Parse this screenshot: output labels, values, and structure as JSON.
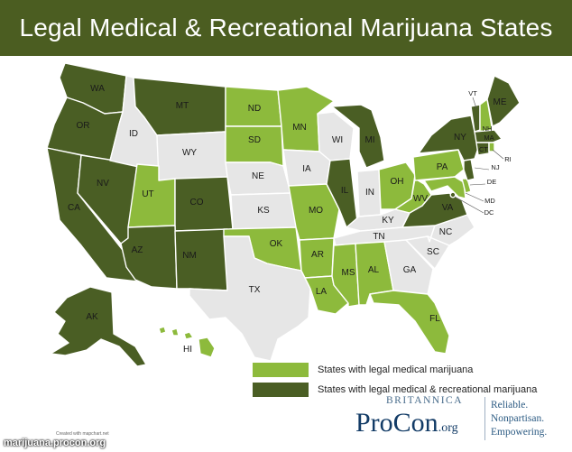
{
  "title": "Legal Medical & Recreational Marijuana States",
  "colors": {
    "recreational": "#4a5e24",
    "medical": "#8dba3c",
    "none": "#e6e6e6",
    "title_bg": "#4b5d21"
  },
  "legend": [
    {
      "status": "medical",
      "label": "States with legal medical marijuana"
    },
    {
      "status": "recreational",
      "label": "States with legal medical & recreational marijuana"
    }
  ],
  "states": [
    {
      "code": "WA",
      "status": "recreational"
    },
    {
      "code": "OR",
      "status": "recreational"
    },
    {
      "code": "CA",
      "status": "recreational"
    },
    {
      "code": "NV",
      "status": "recreational"
    },
    {
      "code": "ID",
      "status": "none"
    },
    {
      "code": "MT",
      "status": "recreational"
    },
    {
      "code": "WY",
      "status": "none"
    },
    {
      "code": "UT",
      "status": "medical"
    },
    {
      "code": "AZ",
      "status": "recreational"
    },
    {
      "code": "CO",
      "status": "recreational"
    },
    {
      "code": "NM",
      "status": "recreational"
    },
    {
      "code": "ND",
      "status": "medical"
    },
    {
      "code": "SD",
      "status": "medical"
    },
    {
      "code": "NE",
      "status": "none"
    },
    {
      "code": "KS",
      "status": "none"
    },
    {
      "code": "OK",
      "status": "medical"
    },
    {
      "code": "TX",
      "status": "none"
    },
    {
      "code": "MN",
      "status": "medical"
    },
    {
      "code": "IA",
      "status": "none"
    },
    {
      "code": "MO",
      "status": "medical"
    },
    {
      "code": "AR",
      "status": "medical"
    },
    {
      "code": "LA",
      "status": "medical"
    },
    {
      "code": "WI",
      "status": "none"
    },
    {
      "code": "IL",
      "status": "recreational"
    },
    {
      "code": "MI",
      "status": "recreational"
    },
    {
      "code": "IN",
      "status": "none"
    },
    {
      "code": "OH",
      "status": "medical"
    },
    {
      "code": "KY",
      "status": "none"
    },
    {
      "code": "TN",
      "status": "none"
    },
    {
      "code": "MS",
      "status": "medical"
    },
    {
      "code": "AL",
      "status": "medical"
    },
    {
      "code": "GA",
      "status": "none"
    },
    {
      "code": "FL",
      "status": "medical"
    },
    {
      "code": "SC",
      "status": "none"
    },
    {
      "code": "NC",
      "status": "none"
    },
    {
      "code": "VA",
      "status": "recreational"
    },
    {
      "code": "WV",
      "status": "medical"
    },
    {
      "code": "MD",
      "status": "medical"
    },
    {
      "code": "DE",
      "status": "medical"
    },
    {
      "code": "NJ",
      "status": "recreational"
    },
    {
      "code": "PA",
      "status": "medical"
    },
    {
      "code": "NY",
      "status": "recreational"
    },
    {
      "code": "CT",
      "status": "recreational"
    },
    {
      "code": "RI",
      "status": "medical"
    },
    {
      "code": "MA",
      "status": "recreational"
    },
    {
      "code": "VT",
      "status": "recreational"
    },
    {
      "code": "NH",
      "status": "medical"
    },
    {
      "code": "ME",
      "status": "recreational"
    },
    {
      "code": "DC",
      "status": "recreational"
    },
    {
      "code": "AK",
      "status": "recreational"
    },
    {
      "code": "HI",
      "status": "medical"
    }
  ],
  "brand": {
    "publisher": "BRITANNICA",
    "name": "ProCon",
    "suffix": ".org",
    "tagline": [
      "Reliable.",
      "Nonpartisan.",
      "Empowering."
    ]
  },
  "credit": "Created with mapchart.net",
  "watermark": "marijuana.procon.org"
}
